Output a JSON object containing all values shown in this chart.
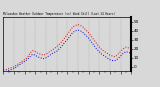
{
  "title": "Milwaukee Weather Outdoor Temperature (vs) Wind Chill (Last 24 Hours)",
  "bg_color": "#d8d8d8",
  "plot_bg": "#d8d8d8",
  "grid_color": "#888888",
  "temp_color": "#dd0000",
  "chill_color": "#0000cc",
  "ylim": [
    -5,
    55
  ],
  "ytick_vals": [
    0,
    10,
    20,
    30,
    40,
    50
  ],
  "ytick_labels": [
    "0",
    "10",
    "20",
    "30",
    "40",
    "50"
  ],
  "n_points": 49,
  "temp": [
    -3,
    -3,
    -2,
    -1,
    0,
    2,
    4,
    6,
    8,
    10,
    15,
    18,
    17,
    15,
    14,
    13,
    14,
    16,
    18,
    20,
    22,
    25,
    28,
    32,
    36,
    40,
    44,
    46,
    47,
    46,
    44,
    41,
    38,
    34,
    30,
    26,
    22,
    19,
    17,
    15,
    13,
    12,
    11,
    14,
    17,
    20,
    22,
    21,
    20
  ],
  "chill": [
    -5,
    -5,
    -4,
    -3,
    -2,
    0,
    2,
    4,
    6,
    8,
    11,
    14,
    13,
    11,
    10,
    9,
    10,
    12,
    14,
    16,
    17,
    20,
    23,
    27,
    30,
    34,
    38,
    40,
    41,
    40,
    38,
    35,
    32,
    28,
    24,
    20,
    17,
    14,
    12,
    10,
    8,
    7,
    7,
    9,
    12,
    15,
    17,
    16,
    15
  ]
}
